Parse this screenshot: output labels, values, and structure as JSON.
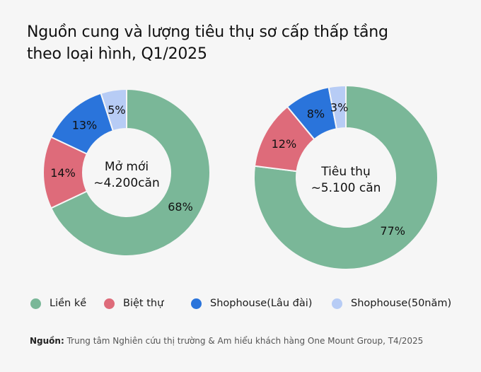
{
  "title_line1": "Nguồn cung và lượng tiêu thụ sơ cấp thấp tầng",
  "title_line2": "theo loại hình, Q1/2025",
  "legend": [
    {
      "label": "Liền kề",
      "color": "#7ab798"
    },
    {
      "label": "Biệt thự",
      "color": "#de6b7a"
    },
    {
      "label": "Shophouse(Lâu đài)",
      "color": "#2a74db"
    },
    {
      "label": "Shophouse(50năm)",
      "color": "#b7ccf5"
    }
  ],
  "source_label": "Nguồn:",
  "source_text": "Trung tâm Nghiên cứu thị trường & Am hiểu khách hàng One Mount Group, T4/2025",
  "chart_data": [
    {
      "type": "pie",
      "center_label": [
        "Mở mới",
        "~4.200căn"
      ],
      "categories": [
        "Liền kề",
        "Biệt thự",
        "Shophouse(Lâu đài)",
        "Shophouse(50năm)"
      ],
      "values": [
        68,
        14,
        13,
        5
      ],
      "labels": [
        "68%",
        "14%",
        "13%",
        "5%"
      ]
    },
    {
      "type": "pie",
      "center_label": [
        "Tiêu thụ",
        "~5.100 căn"
      ],
      "categories": [
        "Liền kề",
        "Biệt thự",
        "Shophouse(Lâu đài)",
        "Shophouse(50năm)"
      ],
      "values": [
        77,
        12,
        8,
        3
      ],
      "labels": [
        "77%",
        "12%",
        "8%",
        "3%"
      ]
    }
  ]
}
